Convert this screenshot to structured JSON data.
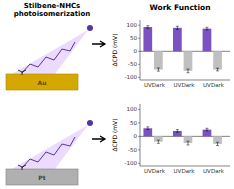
{
  "chart_data": [
    {
      "type": "bar",
      "title": "Work Function",
      "annotations": [
        "Stilbene-NHCs\nphotoisomerization",
        "Au"
      ],
      "categories": [
        "UV",
        "Dark",
        "UV",
        "Dark",
        "UV",
        "Dark"
      ],
      "values": [
        93,
        -70,
        90,
        -75,
        87,
        -70
      ],
      "errors": [
        5,
        6,
        6,
        7,
        5,
        5
      ],
      "colors": [
        "#7B52C1",
        "#C0C0C0",
        "#7B52C1",
        "#C0C0C0",
        "#7B52C1",
        "#C0C0C0"
      ],
      "y_label": "ΔCPD (mV)",
      "ylim": [
        -110,
        120
      ],
      "yticks": [
        -100,
        -50,
        0,
        50,
        100
      ],
      "grid": false
    },
    {
      "type": "bar",
      "annotations": [
        "Pt"
      ],
      "categories": [
        "UV",
        "Dark",
        "UV",
        "Dark",
        "UV",
        "Dark"
      ],
      "values": [
        30,
        -20,
        20,
        -25,
        25,
        -28
      ],
      "errors": [
        5,
        6,
        5,
        7,
        5,
        6
      ],
      "colors": [
        "#7B52C1",
        "#C0C0C0",
        "#7B52C1",
        "#C0C0C0",
        "#7B52C1",
        "#C0C0C0"
      ],
      "y_label": "ΔCPD (mV)",
      "ylim": [
        -110,
        120
      ],
      "yticks": [
        -100,
        -50,
        0,
        50,
        100
      ],
      "grid": false
    }
  ]
}
